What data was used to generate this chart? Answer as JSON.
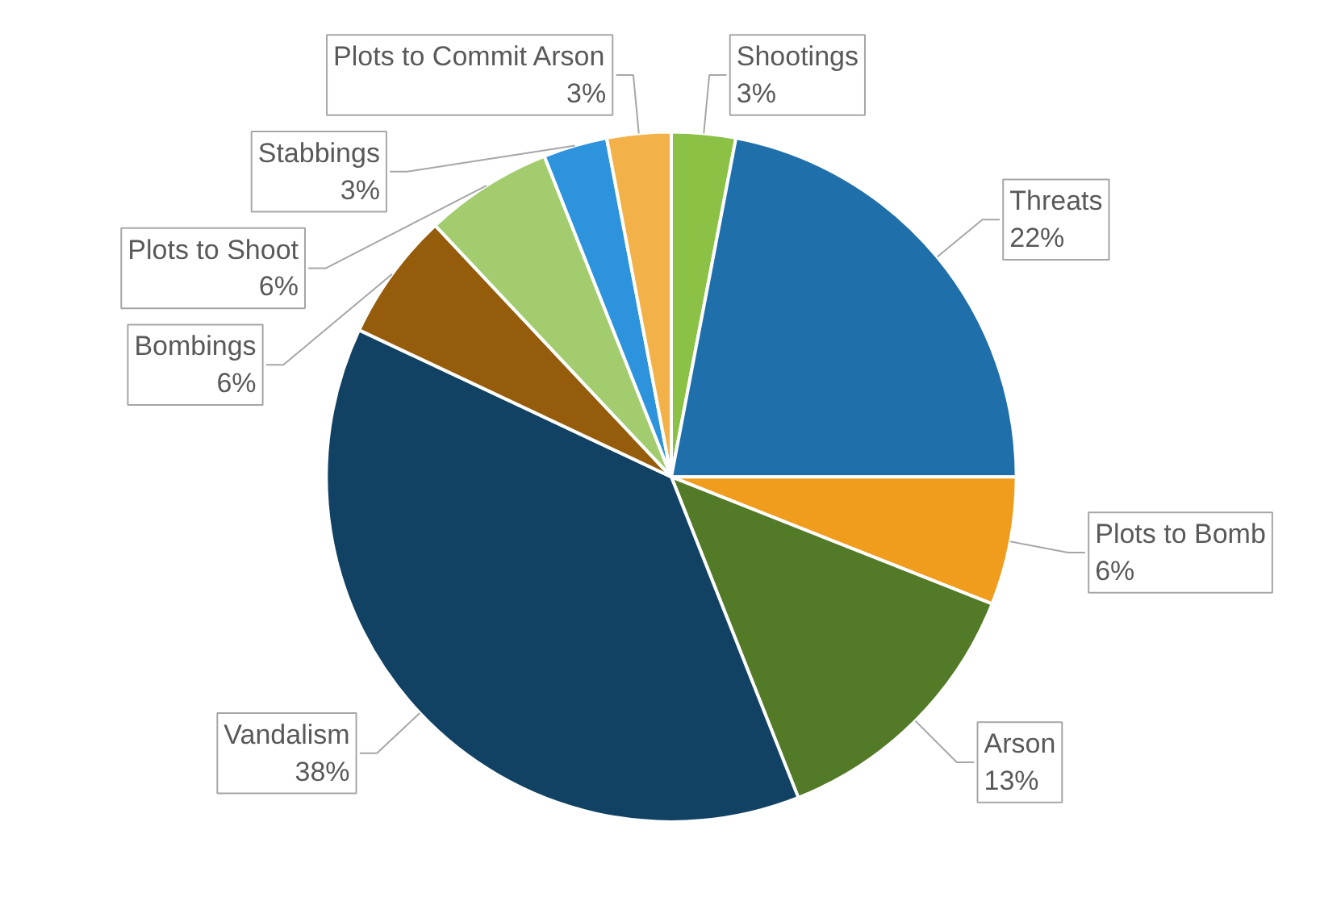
{
  "chart_data": {
    "type": "pie",
    "categories": [
      "Shootings",
      "Threats",
      "Plots to Bomb",
      "Arson",
      "Vandalism",
      "Bombings",
      "Plots to Shoot",
      "Stabbings",
      "Plots to Commit Arson"
    ],
    "values": [
      3,
      22,
      6,
      13,
      38,
      6,
      6,
      3,
      3
    ],
    "value_labels": [
      "3%",
      "22%",
      "6%",
      "13%",
      "38%",
      "6%",
      "6%",
      "3%",
      "3%"
    ],
    "colors": [
      "#8bc145",
      "#1f6fab",
      "#f09c1d",
      "#527a27",
      "#124263",
      "#955c0b",
      "#a3cc6f",
      "#2e93dd",
      "#f3b149"
    ]
  }
}
